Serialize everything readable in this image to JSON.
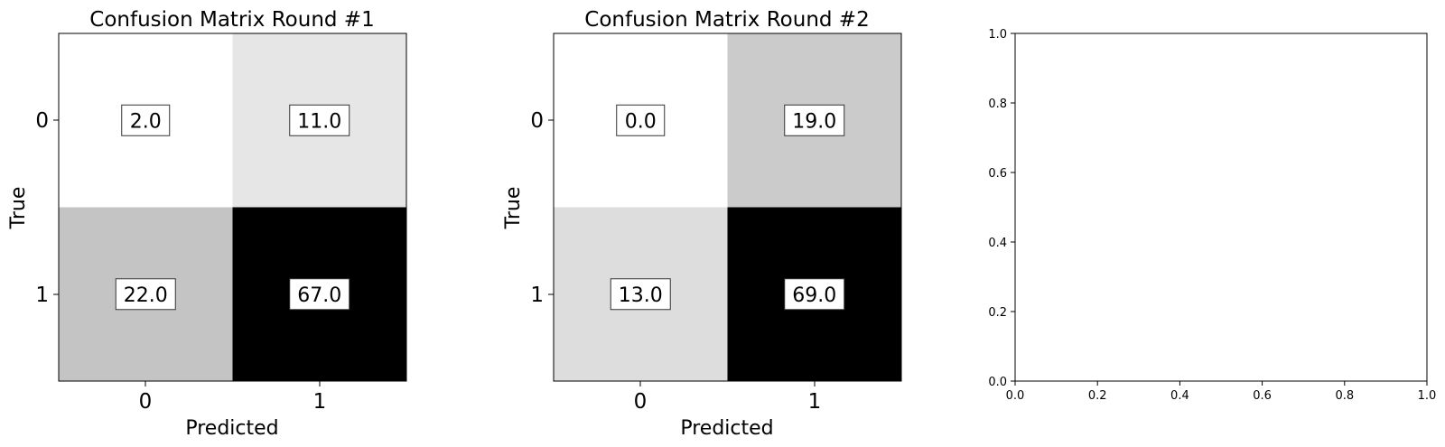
{
  "chart_data": [
    {
      "type": "heatmap",
      "title": "Confusion Matrix Round #1",
      "xlabel": "Predicted",
      "ylabel": "True",
      "x_categories": [
        "0",
        "1"
      ],
      "y_categories": [
        "0",
        "1"
      ],
      "values": [
        [
          2.0,
          11.0
        ],
        [
          22.0,
          67.0
        ]
      ],
      "value_labels": [
        [
          "2.0",
          "11.0"
        ],
        [
          "22.0",
          "67.0"
        ]
      ],
      "colormap": "Greys",
      "grid": false
    },
    {
      "type": "heatmap",
      "title": "Confusion Matrix Round #2",
      "xlabel": "Predicted",
      "ylabel": "True",
      "x_categories": [
        "0",
        "1"
      ],
      "y_categories": [
        "0",
        "1"
      ],
      "values": [
        [
          0.0,
          19.0
        ],
        [
          13.0,
          69.0
        ]
      ],
      "value_labels": [
        [
          "0.0",
          "19.0"
        ],
        [
          "13.0",
          "69.0"
        ]
      ],
      "colormap": "Greys",
      "grid": false
    },
    {
      "type": "scatter",
      "title": "",
      "xlabel": "",
      "ylabel": "",
      "xlim": [
        0.0,
        1.0
      ],
      "ylim": [
        0.0,
        1.0
      ],
      "x_ticks": [
        "0.0",
        "0.2",
        "0.4",
        "0.6",
        "0.8",
        "1.0"
      ],
      "y_ticks": [
        "0.0",
        "0.2",
        "0.4",
        "0.6",
        "0.8",
        "1.0"
      ],
      "series": [],
      "grid": false
    }
  ]
}
